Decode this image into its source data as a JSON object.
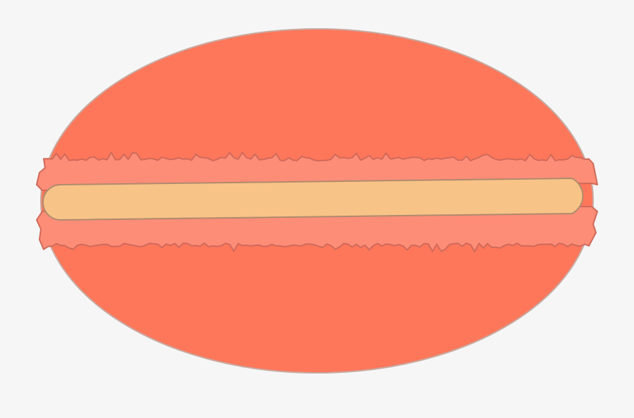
{
  "illustration": {
    "subject": "macaron",
    "colors": {
      "background": "#f6f6f6",
      "shell": "#fe775b",
      "shell_outline": "#c9a9a0",
      "frill": "#fe8d78",
      "frill_outline": "#d06a5a",
      "cream": "#f8c386",
      "cream_outline": "#b08a6e"
    }
  }
}
